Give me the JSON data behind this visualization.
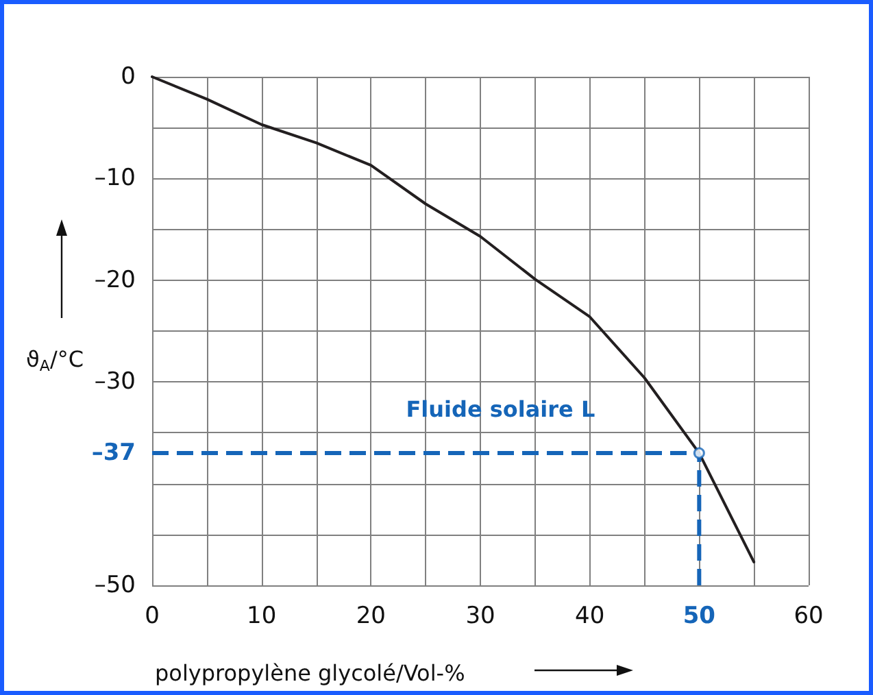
{
  "chart_data": {
    "type": "line",
    "xlabel": "polypropylène glycolé/Vol-%",
    "ylabel": "ϑ$_{A}$/°C",
    "series": [
      {
        "color": "#231f20",
        "x": [
          0,
          5,
          10,
          15,
          20,
          25,
          30,
          35,
          40,
          45,
          50,
          55
        ],
        "values": [
          0,
          -2.2,
          -4.7,
          -6.5,
          -8.7,
          -12.5,
          -15.7,
          -19.9,
          -23.6,
          -29.6,
          -37,
          -47.7
        ]
      },
      {
        "type": "scatter",
        "marker": "circle",
        "color": "#1565b8",
        "x": [
          50
        ],
        "values": [
          -37
        ]
      }
    ],
    "xlim": [
      0,
      60
    ],
    "xticks": [
      0,
      {
        "value": 5,
        "label": null
      },
      10,
      {
        "value": 15,
        "label": null
      },
      20,
      {
        "value": 25,
        "label": null
      },
      30,
      {
        "value": 35,
        "label": null
      },
      40,
      {
        "value": 45,
        "label": null
      },
      {
        "value": 50,
        "label": null
      },
      {
        "value": 55,
        "label": null
      },
      60
    ],
    "ylim": [
      -50,
      0
    ],
    "yticks": [
      {
        "value": -50,
        "label": "–50"
      },
      {
        "value": -45,
        "label": null
      },
      {
        "value": -40,
        "label": null
      },
      {
        "value": -35,
        "label": null
      },
      {
        "value": -30,
        "label": "–30"
      },
      {
        "value": -25,
        "label": null
      },
      {
        "value": -20,
        "label": "–20"
      },
      {
        "value": -15,
        "label": null
      },
      {
        "value": -10,
        "label": "–10"
      },
      {
        "value": -5,
        "label": null
      },
      0
    ],
    "grid": true,
    "marker": "none",
    "ref_lines": [
      {
        "axis": "y",
        "value": -37,
        "label": "–37",
        "color": "#1565b8",
        "line_style": "dashed"
      },
      {
        "axis": "x",
        "value": 50,
        "label": "50",
        "color": "#1565b8",
        "line_style": "dashed"
      }
    ],
    "annotations": [
      "Fluide solaire L"
    ]
  }
}
